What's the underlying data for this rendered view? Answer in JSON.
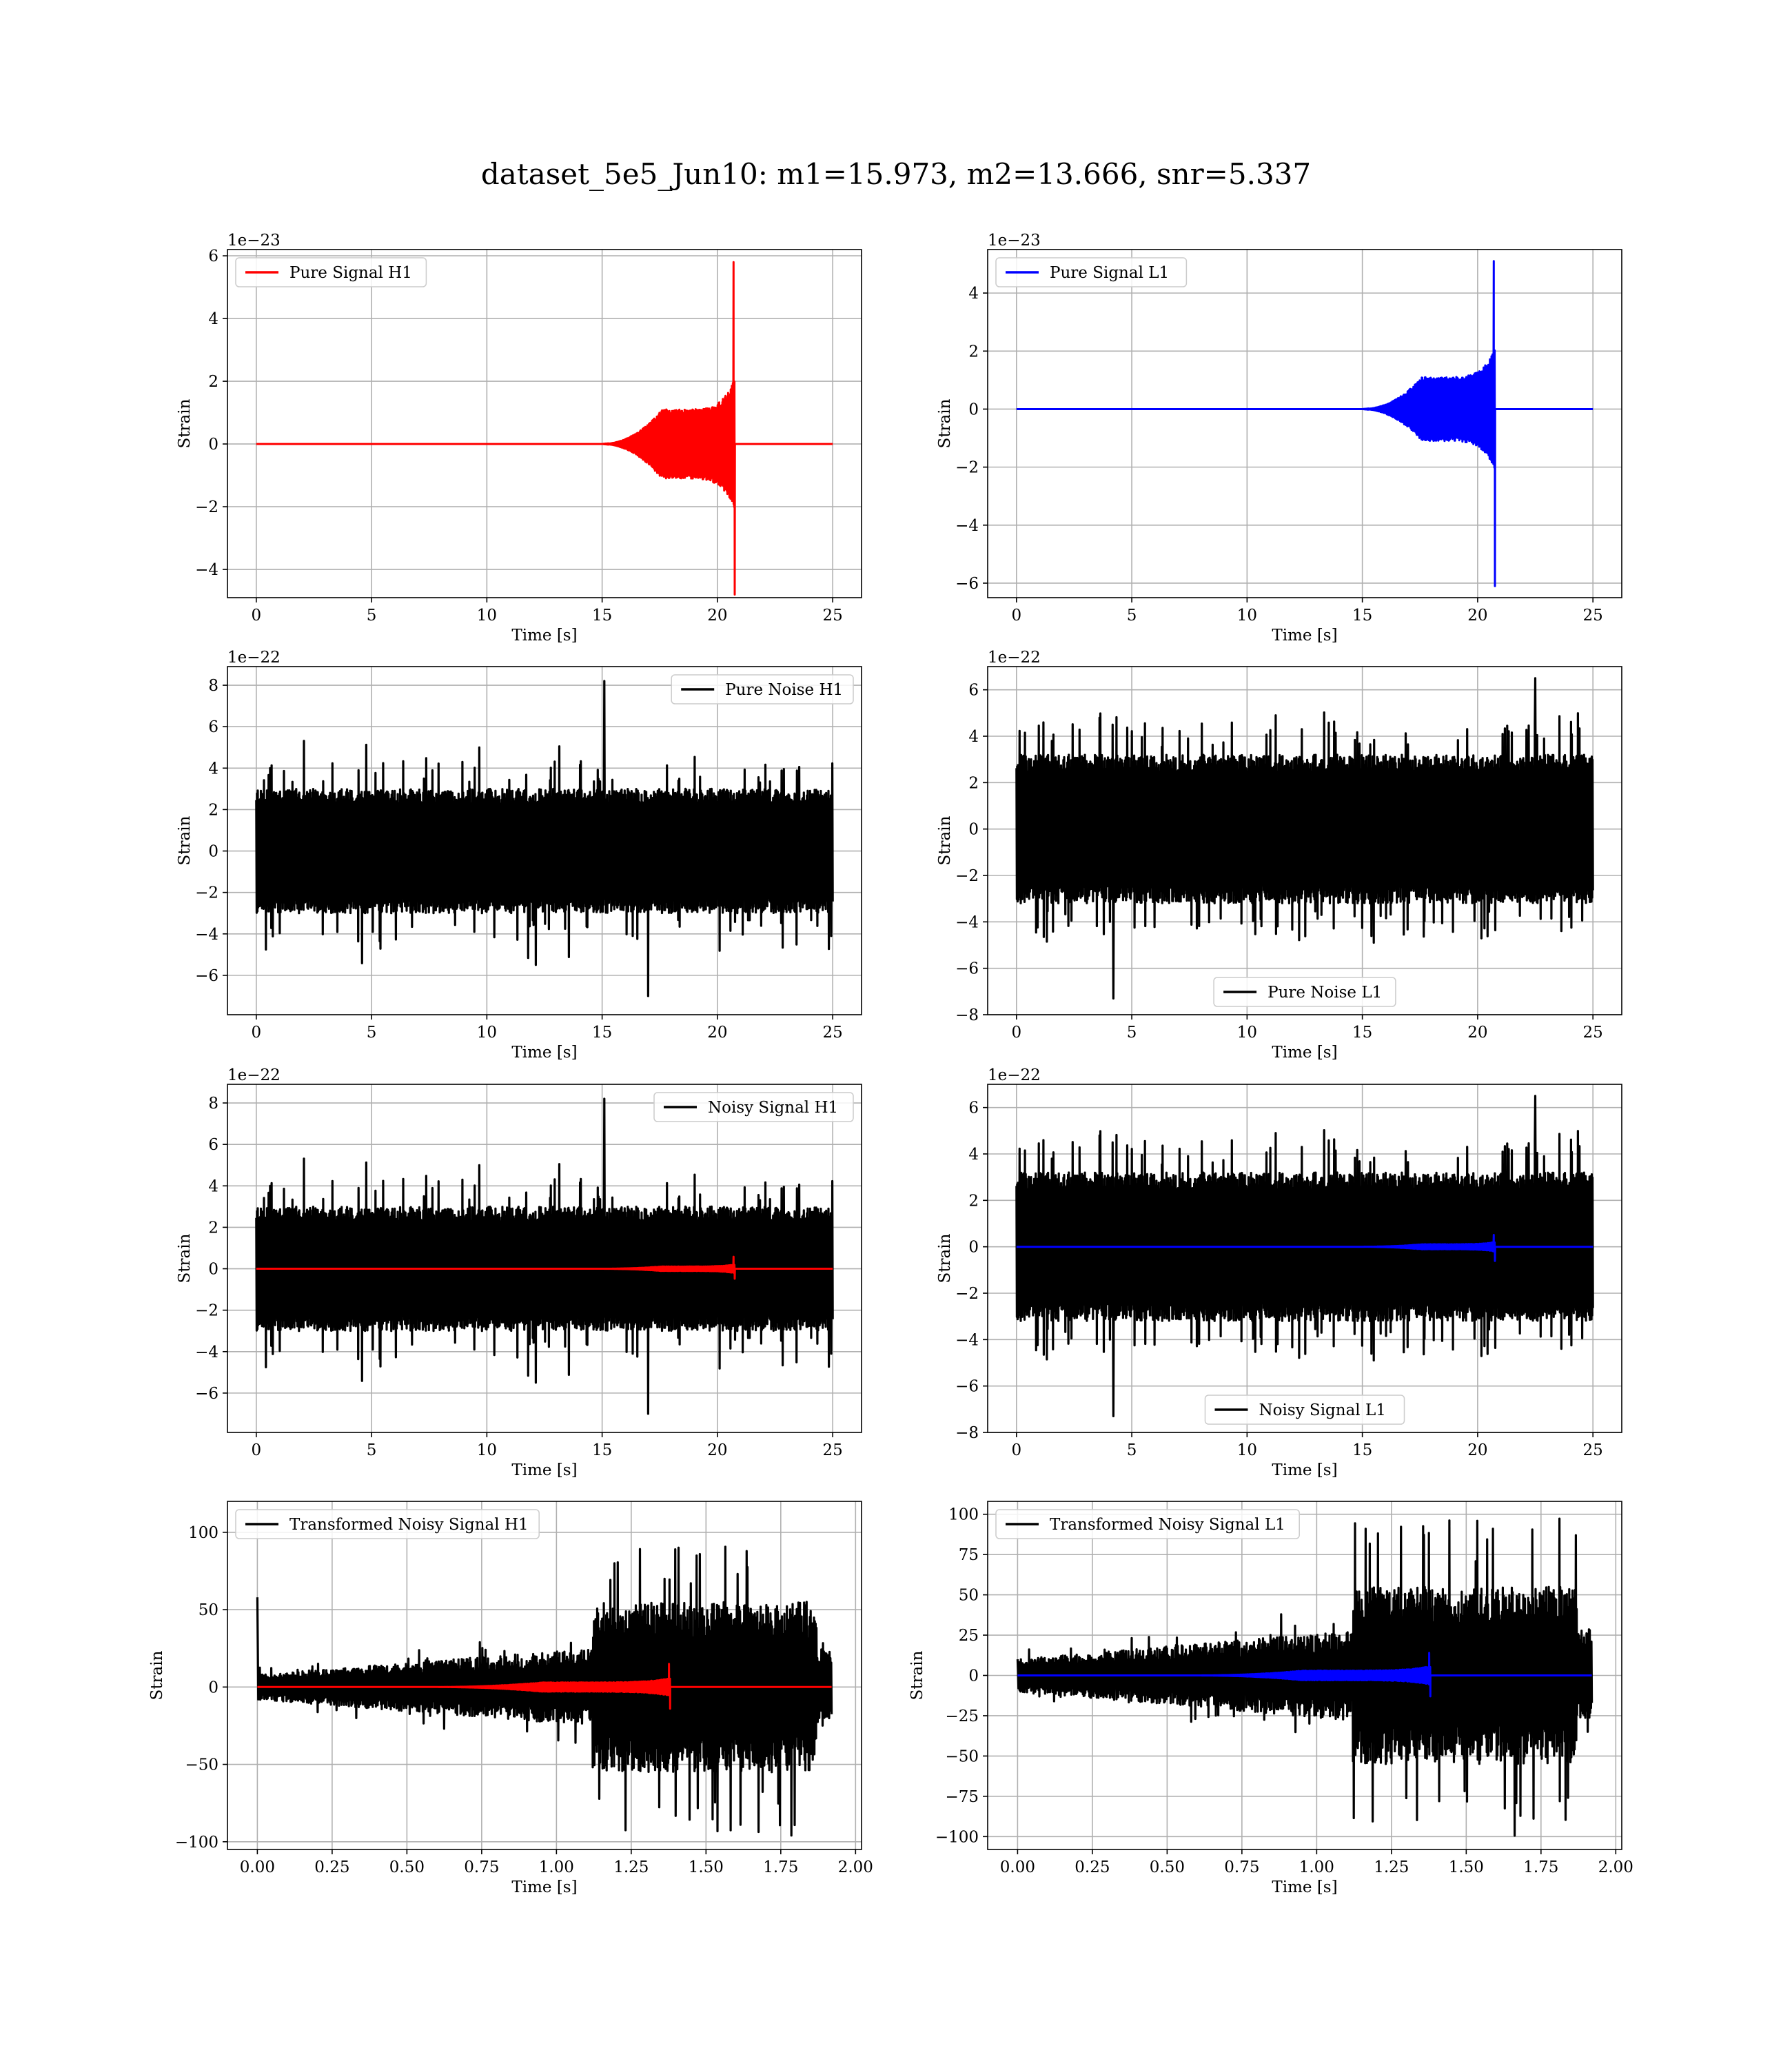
{
  "title": "dataset_5e5_Jun10: m1=15.973, m2=13.666, snr=5.337",
  "colors": {
    "h1": "#ff0000",
    "l1": "#0000ff",
    "noise": "#000000",
    "grid": "#b0b0b0"
  },
  "chart_data": [
    {
      "id": "pure-signal-h1",
      "type": "line",
      "xlabel": "Time [s]",
      "ylabel": "Strain",
      "offset_text": "1e−23",
      "xlim": [
        -1.25,
        26.25
      ],
      "ylim": [
        -4.9,
        6.2
      ],
      "xticks": [
        0,
        5,
        10,
        15,
        20,
        25
      ],
      "yticks": [
        -4,
        -2,
        0,
        2,
        4,
        6
      ],
      "grid": true,
      "legend_loc": "upper left",
      "series": [
        {
          "name": "Pure Signal H1",
          "color": "#ff0000",
          "kind": "chirp",
          "params": {
            "t_start": 0,
            "t_end": 25,
            "t_onset": 15.0,
            "t_merge": 20.75,
            "plateau_amp": 1.1,
            "peak_pos": 5.8,
            "peak_neg": -4.8
          }
        }
      ]
    },
    {
      "id": "pure-signal-l1",
      "type": "line",
      "xlabel": "Time [s]",
      "ylabel": "Strain",
      "offset_text": "1e−23",
      "xlim": [
        -1.25,
        26.25
      ],
      "ylim": [
        -6.5,
        5.5
      ],
      "xticks": [
        0,
        5,
        10,
        15,
        20,
        25
      ],
      "yticks": [
        -6,
        -4,
        -2,
        0,
        2,
        4
      ],
      "grid": true,
      "legend_loc": "upper left",
      "series": [
        {
          "name": "Pure Signal L1",
          "color": "#0000ff",
          "kind": "chirp",
          "params": {
            "t_start": 0,
            "t_end": 25,
            "t_onset": 15.0,
            "t_merge": 20.75,
            "plateau_amp": 1.1,
            "peak_pos": 5.1,
            "peak_neg": -6.1
          }
        }
      ]
    },
    {
      "id": "pure-noise-h1",
      "type": "line",
      "xlabel": "Time [s]",
      "ylabel": "Strain",
      "offset_text": "1e−22",
      "xlim": [
        -1.25,
        26.25
      ],
      "ylim": [
        -7.9,
        8.9
      ],
      "xticks": [
        0,
        5,
        10,
        15,
        20,
        25
      ],
      "yticks": [
        -6,
        -4,
        -2,
        0,
        2,
        4,
        6,
        8
      ],
      "grid": true,
      "legend_loc": "upper right",
      "series": [
        {
          "name": "Pure Noise H1",
          "color": "#000000",
          "kind": "noise",
          "params": {
            "t_start": 0,
            "t_end": 25,
            "core": 3.0,
            "spike_pos": 5.5,
            "spike_neg": -5.6,
            "max_pos": 8.2,
            "max_pos_t": 15.1,
            "min_neg": -7.0,
            "min_neg_t": 17.0
          }
        }
      ]
    },
    {
      "id": "pure-noise-l1",
      "type": "line",
      "xlabel": "Time [s]",
      "ylabel": "Strain",
      "offset_text": "1e−22",
      "xlim": [
        -1.25,
        26.25
      ],
      "ylim": [
        -8.0,
        7.0
      ],
      "xticks": [
        0,
        5,
        10,
        15,
        20,
        25
      ],
      "yticks": [
        -8,
        -6,
        -4,
        -2,
        0,
        2,
        4,
        6
      ],
      "grid": true,
      "legend_loc": "lower center",
      "series": [
        {
          "name": "Pure Noise L1",
          "color": "#000000",
          "kind": "noise",
          "params": {
            "t_start": 0,
            "t_end": 25,
            "core": 3.2,
            "spike_pos": 5.4,
            "spike_neg": -5.0,
            "max_pos": 6.5,
            "max_pos_t": 22.5,
            "min_neg": -7.3,
            "min_neg_t": 4.2
          }
        }
      ]
    },
    {
      "id": "noisy-signal-h1",
      "type": "line",
      "xlabel": "Time [s]",
      "ylabel": "Strain",
      "offset_text": "1e−22",
      "xlim": [
        -1.25,
        26.25
      ],
      "ylim": [
        -7.9,
        8.9
      ],
      "xticks": [
        0,
        5,
        10,
        15,
        20,
        25
      ],
      "yticks": [
        -6,
        -4,
        -2,
        0,
        2,
        4,
        6,
        8
      ],
      "grid": true,
      "legend_loc": "upper right",
      "series": [
        {
          "name": "Noisy Signal H1",
          "color": "#000000",
          "kind": "noise",
          "params": {
            "t_start": 0,
            "t_end": 25,
            "core": 3.0,
            "spike_pos": 5.5,
            "spike_neg": -5.6,
            "max_pos": 8.2,
            "max_pos_t": 15.1,
            "min_neg": -7.0,
            "min_neg_t": 17.0
          }
        },
        {
          "color": "#ff0000",
          "kind": "chirp",
          "params": {
            "t_start": 0,
            "t_end": 25,
            "t_onset": 15.0,
            "t_merge": 20.75,
            "plateau_amp": 0.11,
            "peak_pos": 0.58,
            "peak_neg": -0.48
          }
        }
      ]
    },
    {
      "id": "noisy-signal-l1",
      "type": "line",
      "xlabel": "Time [s]",
      "ylabel": "Strain",
      "offset_text": "1e−22",
      "xlim": [
        -1.25,
        26.25
      ],
      "ylim": [
        -8.0,
        7.0
      ],
      "xticks": [
        0,
        5,
        10,
        15,
        20,
        25
      ],
      "yticks": [
        -8,
        -6,
        -4,
        -2,
        0,
        2,
        4,
        6
      ],
      "grid": true,
      "legend_loc": "lower center",
      "series": [
        {
          "name": "Noisy Signal L1",
          "color": "#000000",
          "kind": "noise",
          "params": {
            "t_start": 0,
            "t_end": 25,
            "core": 3.2,
            "spike_pos": 5.4,
            "spike_neg": -5.0,
            "max_pos": 6.5,
            "max_pos_t": 22.5,
            "min_neg": -7.3,
            "min_neg_t": 4.2
          }
        },
        {
          "color": "#0000ff",
          "kind": "chirp",
          "params": {
            "t_start": 0,
            "t_end": 25,
            "t_onset": 15.0,
            "t_merge": 20.75,
            "plateau_amp": 0.11,
            "peak_pos": 0.51,
            "peak_neg": -0.61
          }
        }
      ]
    },
    {
      "id": "transformed-noisy-signal-h1",
      "type": "line",
      "xlabel": "Time [s]",
      "ylabel": "Strain",
      "offset_text": "",
      "xlim": [
        -0.1,
        2.02
      ],
      "ylim": [
        -105,
        120
      ],
      "xticks": [
        0.0,
        0.25,
        0.5,
        0.75,
        1.0,
        1.25,
        1.5,
        1.75,
        2.0
      ],
      "xtick_labels": [
        "0.00",
        "0.25",
        "0.50",
        "0.75",
        "1.00",
        "1.25",
        "1.50",
        "1.75",
        "2.00"
      ],
      "yticks": [
        -100,
        -50,
        0,
        50,
        100
      ],
      "grid": true,
      "legend_loc": "upper left",
      "series": [
        {
          "name": "Transformed Noisy Signal H1",
          "color": "#000000",
          "kind": "whitened",
          "params": {
            "t_start": 0,
            "t_end": 1.92,
            "pre_amp_start": 8,
            "pre_amp_end": 25,
            "burst_start": 1.12,
            "burst_end": 1.87,
            "burst_amp": 55,
            "max_pos": 92,
            "min_neg": -96,
            "spike0": 58
          }
        },
        {
          "color": "#ff0000",
          "kind": "chirp",
          "params": {
            "t_start": 0,
            "t_end": 1.92,
            "t_onset": 0.6,
            "t_merge": 1.38,
            "plateau_amp": 3,
            "peak_pos": 15,
            "peak_neg": -14
          }
        }
      ]
    },
    {
      "id": "transformed-noisy-signal-l1",
      "type": "line",
      "xlabel": "Time [s]",
      "ylabel": "Strain",
      "offset_text": "",
      "xlim": [
        -0.1,
        2.02
      ],
      "ylim": [
        -108,
        108
      ],
      "xticks": [
        0.0,
        0.25,
        0.5,
        0.75,
        1.0,
        1.25,
        1.5,
        1.75,
        2.0
      ],
      "xtick_labels": [
        "0.00",
        "0.25",
        "0.50",
        "0.75",
        "1.00",
        "1.25",
        "1.50",
        "1.75",
        "2.00"
      ],
      "yticks": [
        -100,
        -75,
        -50,
        -25,
        0,
        25,
        50,
        75,
        100
      ],
      "grid": true,
      "legend_loc": "upper left",
      "series": [
        {
          "name": "Transformed Noisy Signal L1",
          "color": "#000000",
          "kind": "whitened",
          "params": {
            "t_start": 0,
            "t_end": 1.92,
            "pre_amp_start": 10,
            "pre_amp_end": 28,
            "burst_start": 1.12,
            "burst_end": 1.87,
            "burst_amp": 55,
            "max_pos": 100,
            "min_neg": -100,
            "spike0": 10
          }
        },
        {
          "color": "#0000ff",
          "kind": "chirp",
          "params": {
            "t_start": 0,
            "t_end": 1.92,
            "t_onset": 0.6,
            "t_merge": 1.38,
            "plateau_amp": 3,
            "peak_pos": 14,
            "peak_neg": -13
          }
        }
      ]
    }
  ]
}
